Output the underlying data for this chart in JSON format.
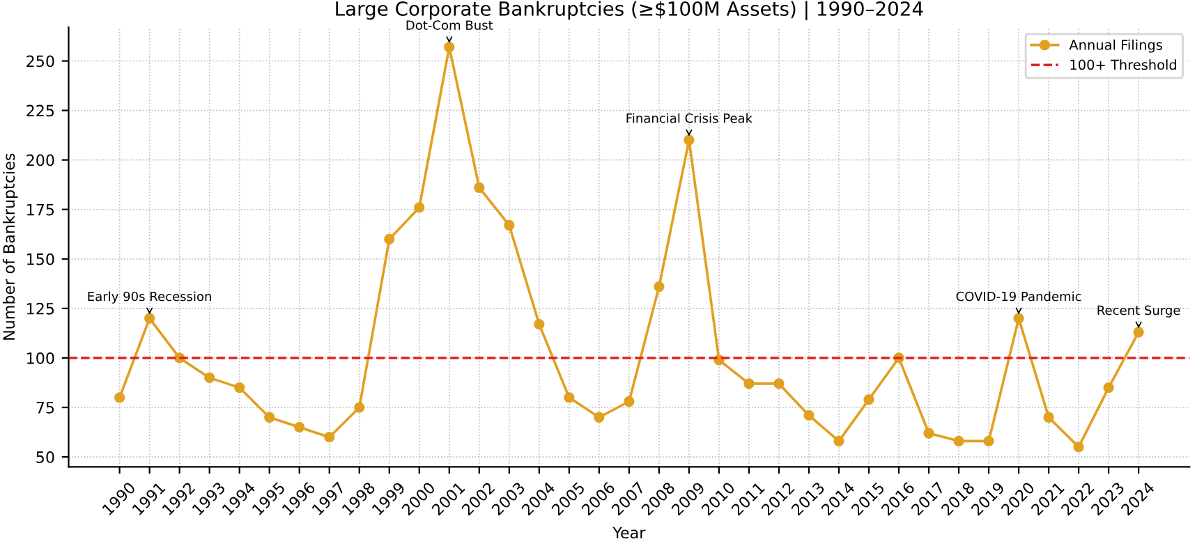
{
  "chart_data": {
    "type": "line",
    "title": "Large Corporate Bankruptcies (≥$100M Assets) | 1990–2024",
    "xlabel": "Year",
    "ylabel": "Number of Bankruptcies",
    "x": [
      1990,
      1991,
      1992,
      1993,
      1994,
      1995,
      1996,
      1997,
      1998,
      1999,
      2000,
      2001,
      2002,
      2003,
      2004,
      2005,
      2006,
      2007,
      2008,
      2009,
      2010,
      2011,
      2012,
      2013,
      2014,
      2015,
      2016,
      2017,
      2018,
      2019,
      2020,
      2021,
      2022,
      2023,
      2024
    ],
    "series": [
      {
        "name": "Annual Filings",
        "color": "#e1a020",
        "values": [
          80,
          120,
          100,
          90,
          85,
          70,
          65,
          60,
          75,
          160,
          176,
          257,
          186,
          167,
          117,
          80,
          70,
          78,
          136,
          210,
          99,
          87,
          87,
          71,
          58,
          79,
          100,
          62,
          58,
          58,
          120,
          70,
          55,
          85,
          113
        ]
      }
    ],
    "xlim": [
      1988.3,
      2025.7
    ],
    "xticks": [
      1990,
      1991,
      1992,
      1993,
      1994,
      1995,
      1996,
      1997,
      1998,
      1999,
      2000,
      2001,
      2002,
      2003,
      2004,
      2005,
      2006,
      2007,
      2008,
      2009,
      2010,
      2011,
      2012,
      2013,
      2014,
      2015,
      2016,
      2017,
      2018,
      2019,
      2020,
      2021,
      2022,
      2023,
      2024
    ],
    "ylim": [
      45,
      267
    ],
    "yticks": [
      50,
      75,
      100,
      125,
      150,
      175,
      200,
      225,
      250
    ],
    "ref_lines": [
      {
        "axis": "y",
        "value": 100,
        "label": "100+ Threshold",
        "color": "#e02020",
        "line_style": "dashed"
      }
    ],
    "annotations": [
      {
        "text": "Early 90s Recession",
        "x": 1991,
        "y": 120
      },
      {
        "text": "Dot-Com Bust",
        "x": 2001,
        "y": 257
      },
      {
        "text": "Financial Crisis Peak",
        "x": 2009,
        "y": 210
      },
      {
        "text": "COVID-19 Pandemic",
        "x": 2020,
        "y": 120
      },
      {
        "text": "Recent Surge",
        "x": 2024,
        "y": 113
      }
    ],
    "grid": true,
    "legend": "top right",
    "marker": "circle",
    "line_style": "solid"
  }
}
